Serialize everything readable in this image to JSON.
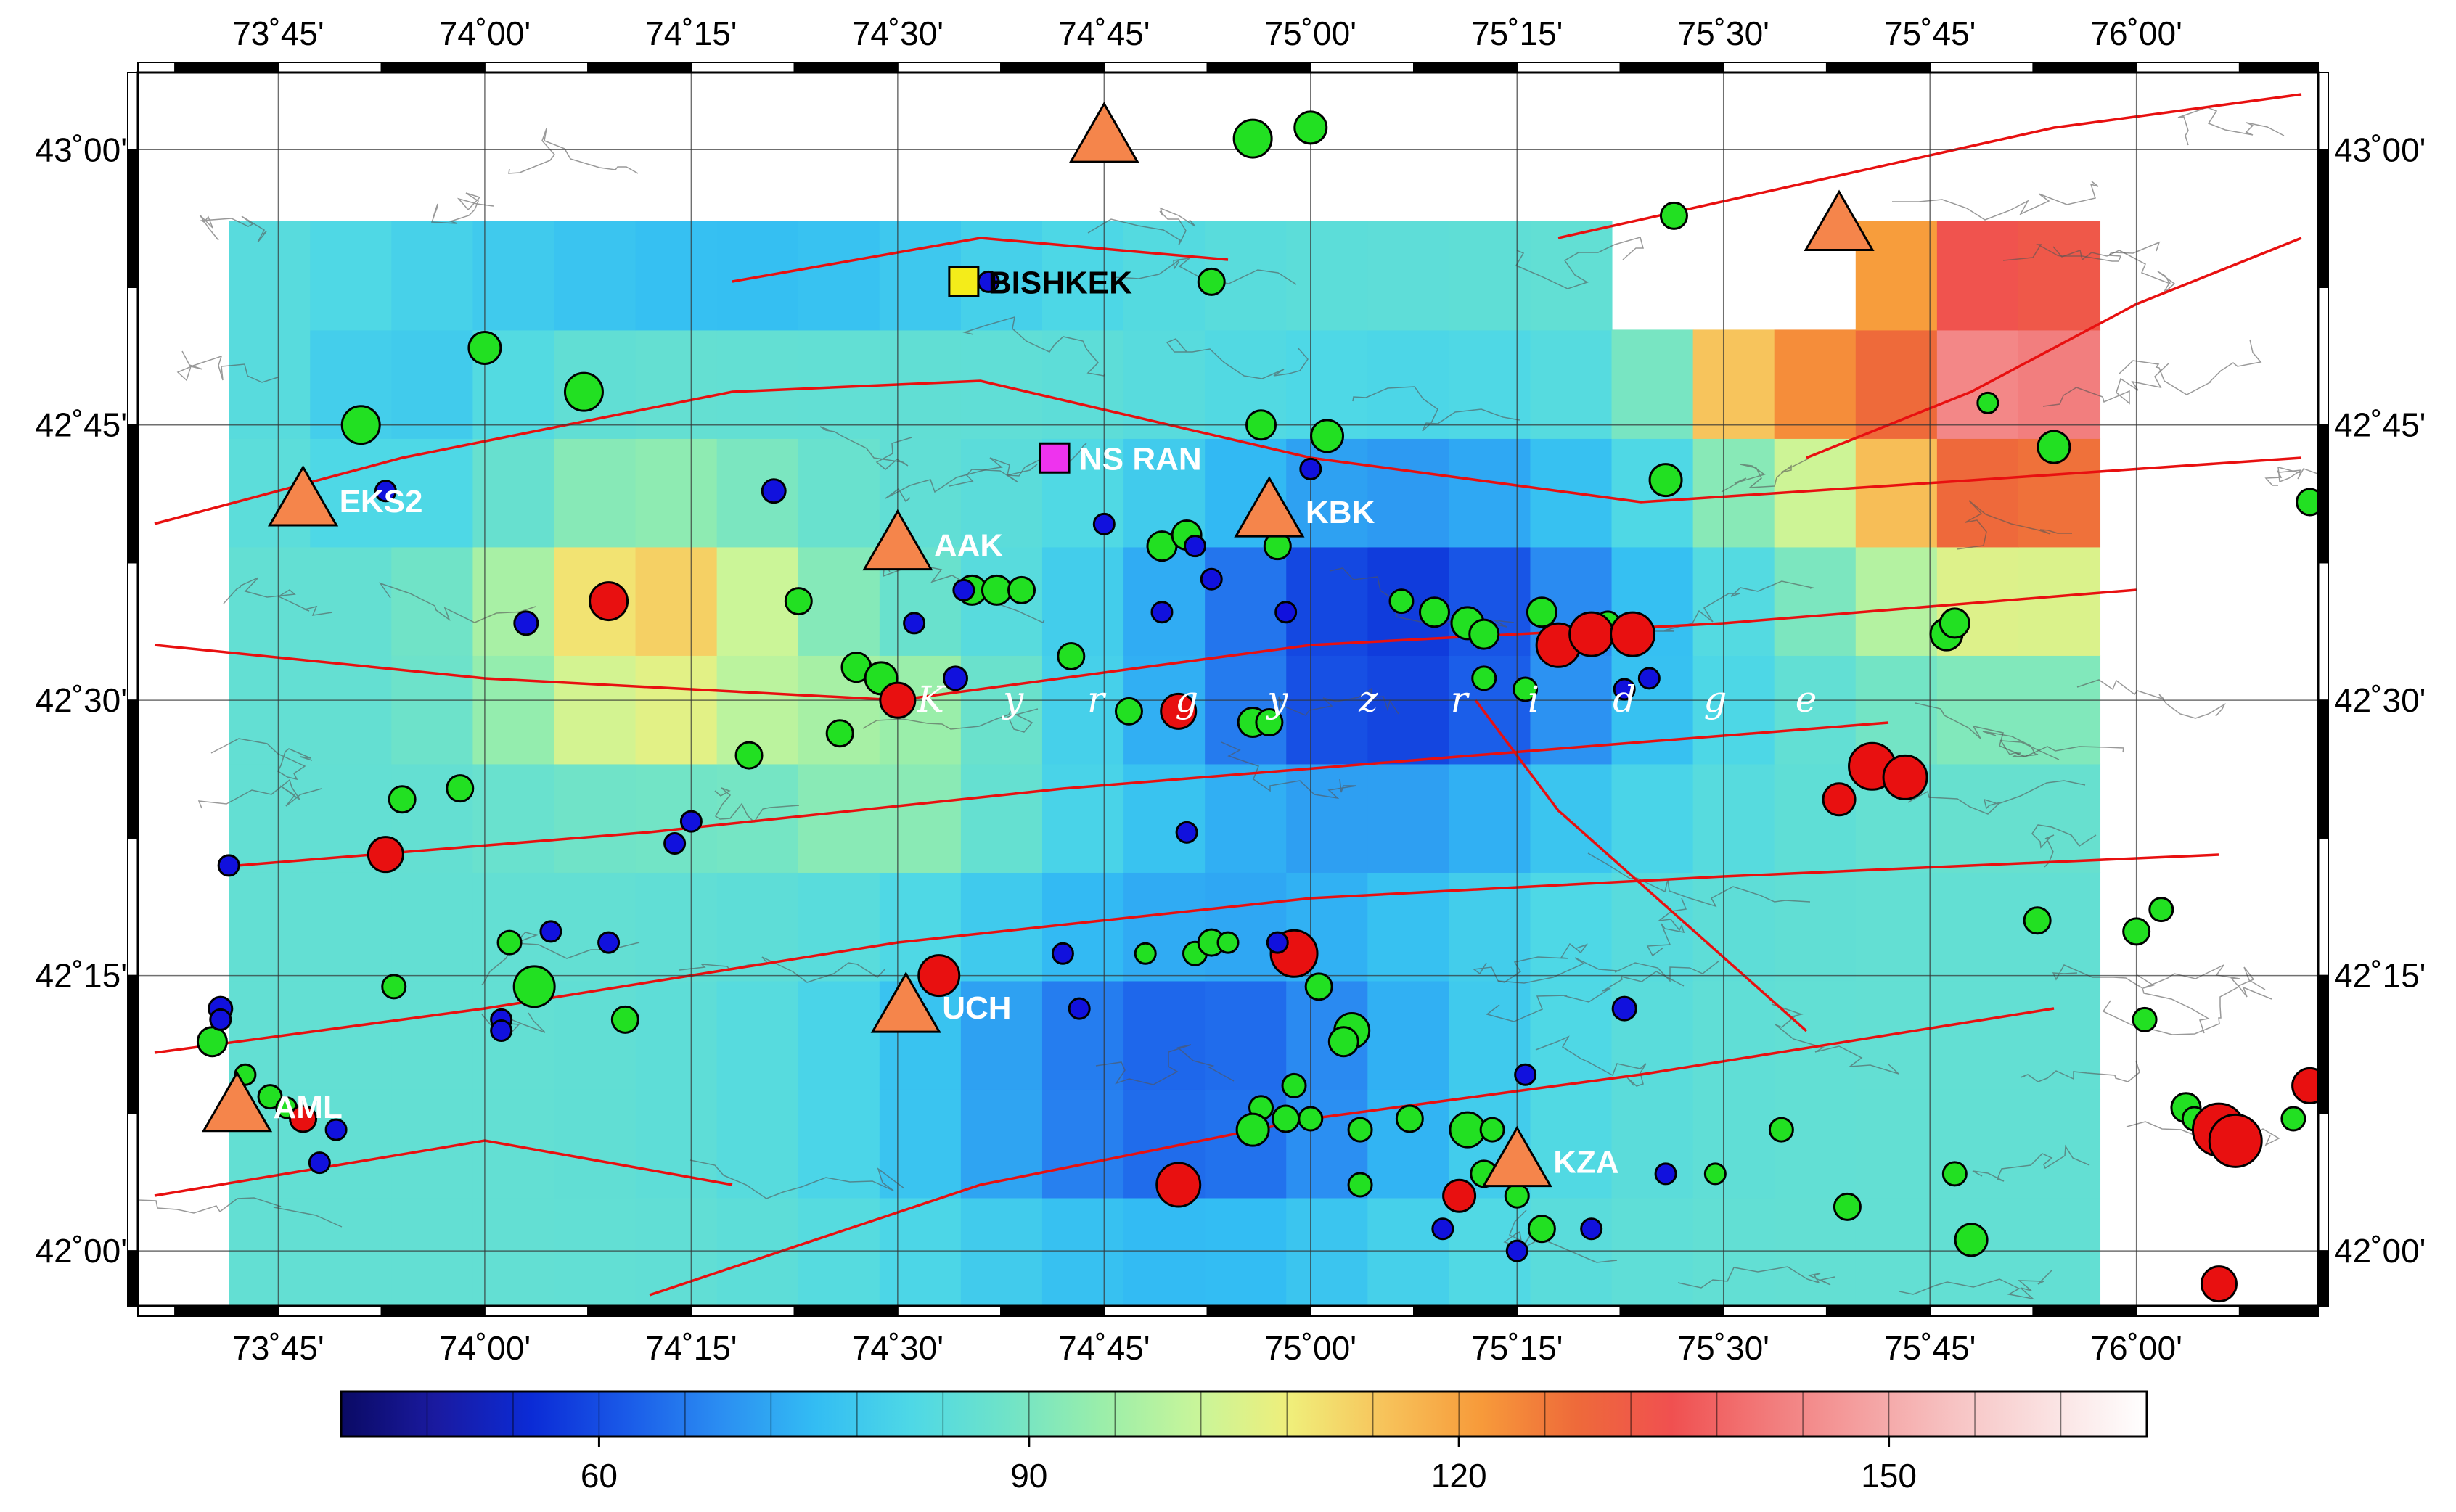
{
  "map": {
    "lon_ticks": [
      {
        "deg": 73.75,
        "label": "73˚45'"
      },
      {
        "deg": 74.0,
        "label": "74˚00'"
      },
      {
        "deg": 74.25,
        "label": "74˚15'"
      },
      {
        "deg": 74.5,
        "label": "74˚30'"
      },
      {
        "deg": 74.75,
        "label": "74˚45'"
      },
      {
        "deg": 75.0,
        "label": "75˚00'"
      },
      {
        "deg": 75.25,
        "label": "75˚15'"
      },
      {
        "deg": 75.5,
        "label": "75˚30'"
      },
      {
        "deg": 75.75,
        "label": "75˚45'"
      },
      {
        "deg": 76.0,
        "label": "76˚00'"
      }
    ],
    "lat_ticks": [
      {
        "deg": 43.0,
        "label": "43˚00'"
      },
      {
        "deg": 42.75,
        "label": "42˚45'"
      },
      {
        "deg": 42.5,
        "label": "42˚30'"
      },
      {
        "deg": 42.25,
        "label": "42˚15'"
      },
      {
        "deg": 42.0,
        "label": "42˚00'"
      }
    ],
    "lon_range": [
      73.58,
      76.22
    ],
    "lat_range": [
      41.95,
      43.07
    ],
    "ridge_label": [
      "K",
      "y",
      "r",
      "g",
      "y",
      "z",
      "r",
      "i",
      "d",
      "g",
      "e"
    ],
    "ridge_letter_lons": [
      74.54,
      74.64,
      74.74,
      74.85,
      74.96,
      75.07,
      75.18,
      75.27,
      75.38,
      75.49,
      75.6
    ],
    "ridge_lat": 42.5,
    "colors": {
      "fault": "#e81010",
      "contour": "#555555",
      "station": "#f5854b",
      "event_green": "#22e022",
      "event_red": "#e81010",
      "event_blue": "#1111dd",
      "city_yellow": "#f4ec1a",
      "city_magenta": "#ee33ee"
    },
    "stations": [
      {
        "name": "",
        "lon": 74.75,
        "lat": 43.01
      },
      {
        "name": "",
        "lon": 75.64,
        "lat": 42.93
      },
      {
        "name": "EKS2",
        "lon": 73.78,
        "lat": 42.68
      },
      {
        "name": "AAK",
        "lon": 74.5,
        "lat": 42.64
      },
      {
        "name": "KBK",
        "lon": 74.95,
        "lat": 42.67
      },
      {
        "name": "UCH",
        "lon": 74.51,
        "lat": 42.22
      },
      {
        "name": "AML",
        "lon": 73.7,
        "lat": 42.13
      },
      {
        "name": "KZA",
        "lon": 75.25,
        "lat": 42.08
      }
    ],
    "cities": [
      {
        "name": "BISHKEK",
        "lon": 74.58,
        "lat": 42.88,
        "symbol": "square-yellow"
      },
      {
        "name": "NS RAN",
        "lon": 74.69,
        "lat": 42.72,
        "symbol": "square-magenta"
      }
    ]
  },
  "colorbar": {
    "min": 42,
    "max": 168,
    "labels": [
      {
        "value": 60,
        "label": "60"
      },
      {
        "value": 90,
        "label": "90"
      },
      {
        "value": 120,
        "label": "120"
      },
      {
        "value": 150,
        "label": "150"
      }
    ],
    "stops": [
      "#0a0a64",
      "#1a1aa0",
      "#0b2bd6",
      "#1a5ae8",
      "#2b8ef2",
      "#33bdf3",
      "#4ed8e6",
      "#6fe3c8",
      "#9aeeaa",
      "#c8f59a",
      "#f0ee7a",
      "#f7c25a",
      "#f79a3a",
      "#ee6a3a",
      "#f05050",
      "#f27a7a",
      "#f4a0a0",
      "#f7c4c4",
      "#fae2e2",
      "#ffffff"
    ]
  }
}
